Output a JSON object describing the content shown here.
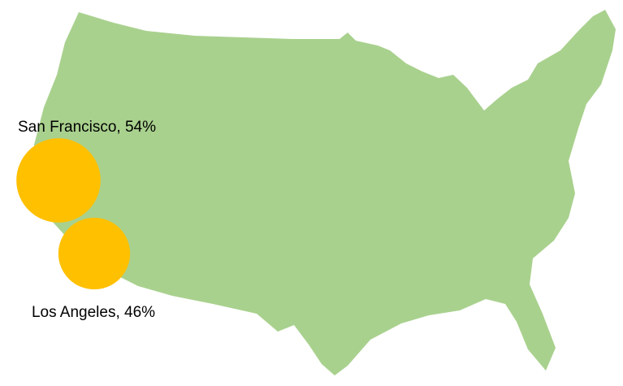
{
  "chart_data": {
    "type": "bubble-map",
    "map_color": "#a9d18e",
    "bubble_color": "#ffc000",
    "bubbles": [
      {
        "label": "San Francisco, 54%",
        "value": 54
      },
      {
        "label": "Los Angeles, 46%",
        "value": 46
      }
    ]
  }
}
